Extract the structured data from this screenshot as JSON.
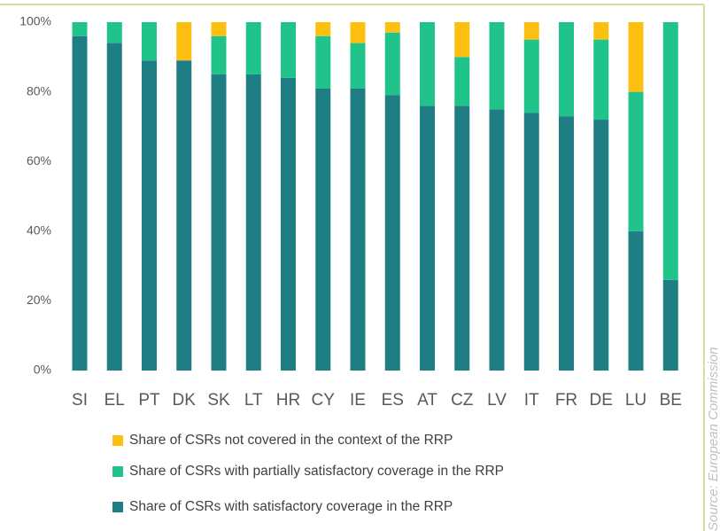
{
  "chart_data": {
    "type": "stacked_bar",
    "categories": [
      "SI",
      "EL",
      "PT",
      "DK",
      "SK",
      "LT",
      "HR",
      "CY",
      "IE",
      "ES",
      "AT",
      "CZ",
      "LV",
      "IT",
      "FR",
      "DE",
      "LU",
      "BE"
    ],
    "series": [
      {
        "name": "Share of CSRs with satisfactory coverage in the RRP",
        "color": "#1f7d84",
        "values": [
          96,
          94,
          89,
          89,
          85,
          85,
          84,
          81,
          81,
          79,
          76,
          76,
          75,
          74,
          73,
          72,
          40,
          26
        ]
      },
      {
        "name": "Share of CSRs with partially satisfactory coverage in the RRP",
        "color": "#20c48a",
        "values": [
          4,
          6,
          11,
          0,
          11,
          15,
          16,
          15,
          13,
          18,
          24,
          14,
          25,
          21,
          27,
          23,
          40,
          74
        ]
      },
      {
        "name": "Share of CSRs not covered in the context of the RRP",
        "color": "#fcbf12",
        "values": [
          0,
          0,
          0,
          11,
          4,
          0,
          0,
          4,
          6,
          3,
          0,
          10,
          0,
          5,
          0,
          5,
          20,
          0
        ]
      }
    ],
    "ylim": [
      0,
      100
    ],
    "yticks": [
      {
        "value": 0,
        "label": "0%"
      },
      {
        "value": 20,
        "label": "20%"
      },
      {
        "value": 40,
        "label": "40%"
      },
      {
        "value": 60,
        "label": "60%"
      },
      {
        "value": 80,
        "label": "80%"
      },
      {
        "value": 100,
        "label": "100%"
      }
    ],
    "source": "Source: European Commission"
  }
}
